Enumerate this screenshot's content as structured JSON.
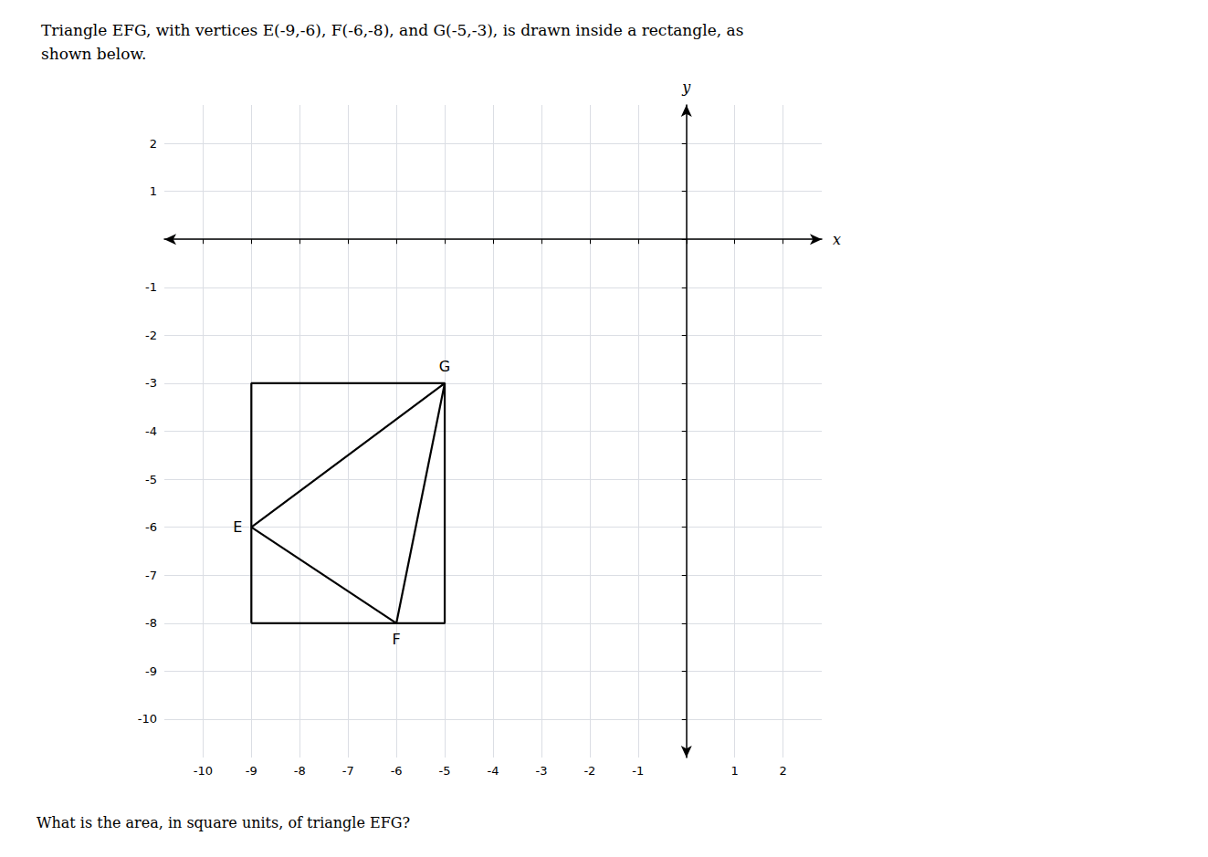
{
  "chart_data": {
    "type": "line",
    "title": "Triangle EFG, with vertices E(-9,-6), F(-6,-8), and G(-5,-3), is drawn inside a rectangle, as\nshown below.",
    "annotations": [
      "What is the area, in square units, of triangle EFG?"
    ],
    "xlabel": "x",
    "ylabel": "y",
    "xlim": [
      -10.8,
      2.8
    ],
    "ylim": [
      -10.8,
      2.8
    ],
    "xticks": [
      -10,
      -9,
      -8,
      -7,
      -6,
      -5,
      -4,
      -3,
      -2,
      -1,
      {
        "value": 0,
        "label": null
      },
      1,
      2
    ],
    "yticks": [
      -10,
      -9,
      -8,
      -7,
      -6,
      -5,
      -4,
      -3,
      -2,
      -1,
      {
        "value": 0,
        "label": null
      },
      1,
      2
    ],
    "grid": true,
    "series": [
      {
        "x": [
          -9,
          -5,
          -5,
          -9,
          -9
        ],
        "values": [
          -8,
          -8,
          -3,
          -3,
          -8
        ],
        "color": "#000000"
      },
      {
        "x": [
          -9,
          -6,
          -5,
          -9
        ],
        "values": [
          -6,
          -8,
          -3,
          -6
        ],
        "color": "#000000",
        "point_labels": [
          "E",
          "F",
          "G",
          null
        ]
      }
    ]
  }
}
